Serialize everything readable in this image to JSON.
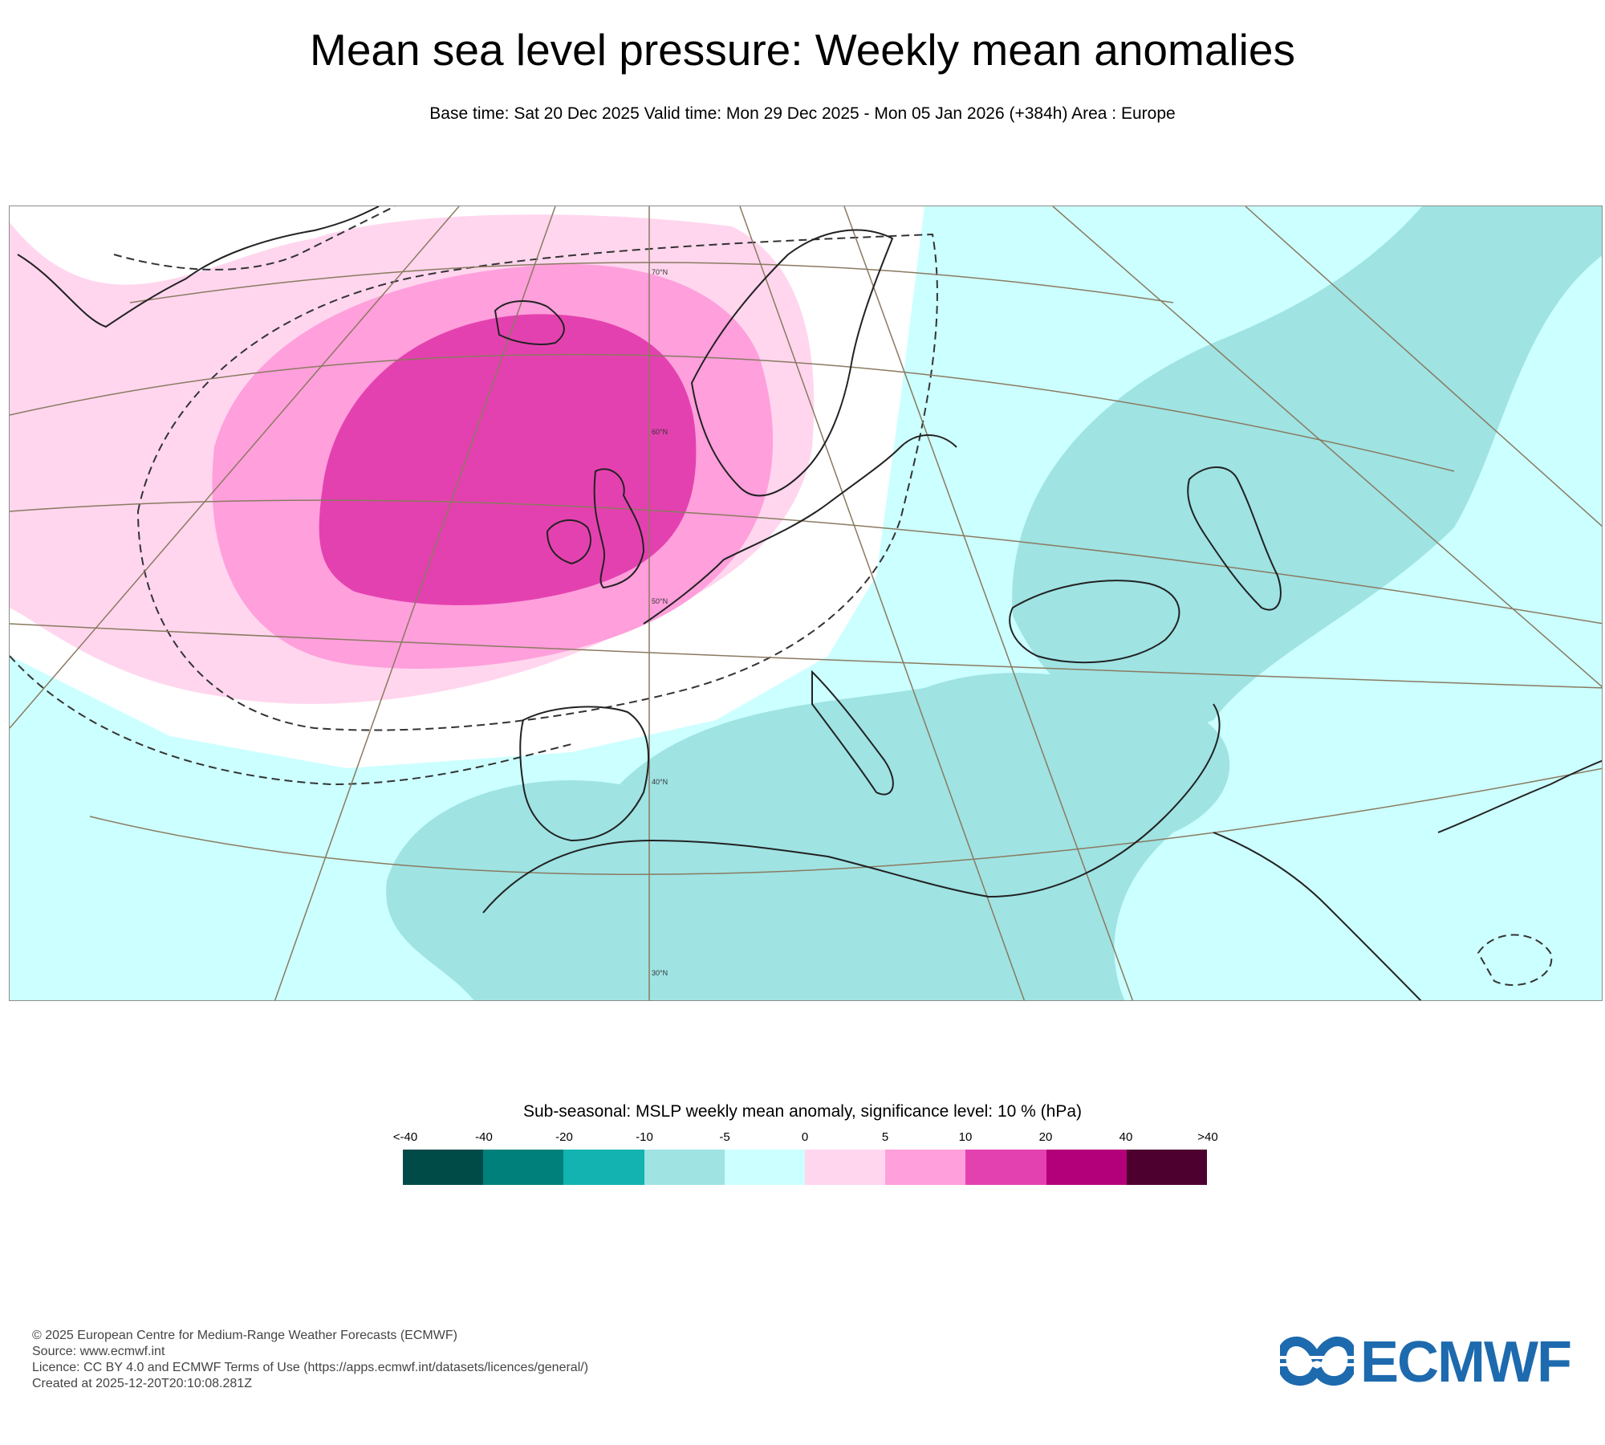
{
  "header": {
    "title": "Mean sea level pressure: Weekly mean anomalies",
    "subtitle": "Base time: Sat 20 Dec 2025 Valid time: Mon 29 Dec 2025 - Mon 05 Jan 2026 (+384h) Area : Europe"
  },
  "map": {
    "region": "Europe",
    "lat_labels": [
      "70°N",
      "60°N",
      "50°N",
      "40°N",
      "30°N"
    ],
    "colors": {
      "ocean_background": "#ccffff",
      "neutral": "#ffffff",
      "pos_light": "#ffd6ee",
      "pos_mid": "#ff9fdc",
      "pos_strong": "#e441b0",
      "neg_light": "#9fe3e3",
      "coastline": "#222222",
      "graticule": "#8a7a60"
    }
  },
  "legend": {
    "title": "Sub-seasonal: MSLP weekly mean anomaly, significance level: 10 % (hPa)",
    "ticks": [
      "<-40",
      "-40",
      "-20",
      "-10",
      "-5",
      "0",
      "5",
      "10",
      "20",
      "40",
      ">40"
    ],
    "colors": [
      "#004a47",
      "#00807a",
      "#12b3b0",
      "#9fe3e3",
      "#ccffff",
      "#ffd6ee",
      "#ff9fdc",
      "#e441b0",
      "#b3007a",
      "#4d0030"
    ]
  },
  "footer": {
    "lines": [
      "© 2025 European Centre for Medium-Range Weather Forecasts (ECMWF)",
      "Source: www.ecmwf.int",
      "Licence: CC BY 4.0 and ECMWF Terms of Use (https://apps.ecmwf.int/datasets/licences/general/)",
      "Created at 2025-12-20T20:10:08.281Z"
    ]
  },
  "logo": {
    "text": "ECMWF",
    "color": "#1d6aae"
  }
}
